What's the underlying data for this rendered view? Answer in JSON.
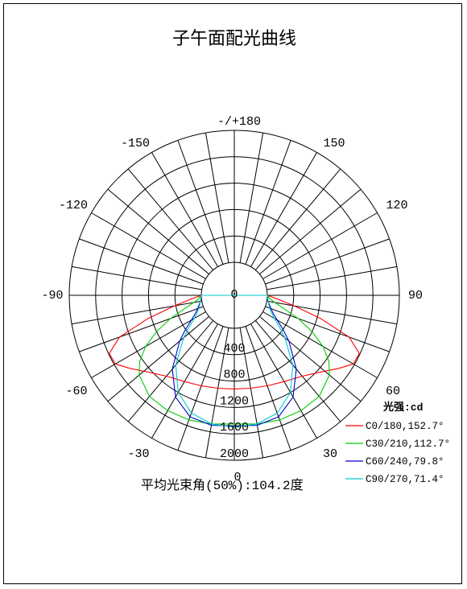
{
  "chart_data": {
    "type": "polar",
    "title": "子午面配光曲线",
    "angle_labels": [
      "-/+180",
      "150",
      "120",
      "90",
      "60",
      "30",
      "0",
      "-30",
      "-60",
      "-90",
      "-120",
      "-150"
    ],
    "radial_ticks": [
      "0",
      "400",
      "800",
      "1200",
      "1600",
      "2000"
    ],
    "radial_max": 2000,
    "legend_title": "光强:cd",
    "series": [
      {
        "name": "C0/180,152.7°",
        "color": "#ff0000",
        "angles": [
          0,
          10,
          20,
          30,
          40,
          50,
          55,
          60,
          65,
          70,
          75,
          80,
          85,
          90
        ],
        "values": [
          920,
          930,
          960,
          1010,
          1100,
          1290,
          1430,
          1580,
          1590,
          1350,
          850,
          420,
          160,
          0
        ]
      },
      {
        "name": "C30/210,112.7°",
        "color": "#00cc00",
        "angles": [
          0,
          10,
          20,
          30,
          40,
          50,
          55,
          60,
          65,
          70,
          75,
          80,
          85,
          90
        ],
        "values": [
          1450,
          1480,
          1510,
          1520,
          1500,
          1380,
          1250,
          1050,
          800,
          530,
          280,
          120,
          40,
          0
        ]
      },
      {
        "name": "C60/240,79.8°",
        "color": "#0000cc",
        "angles": [
          0,
          10,
          20,
          30,
          40,
          50,
          55,
          60,
          65,
          70,
          75,
          80,
          85,
          90
        ],
        "values": [
          1480,
          1500,
          1460,
          1280,
          960,
          580,
          400,
          250,
          150,
          90,
          50,
          20,
          10,
          0
        ]
      },
      {
        "name": "C90/270,71.4°",
        "color": "#00cccc",
        "angles": [
          0,
          10,
          20,
          30,
          40,
          50,
          55,
          60,
          65,
          70,
          75,
          80,
          85,
          90
        ],
        "values": [
          1500,
          1480,
          1400,
          1200,
          880,
          500,
          330,
          200,
          120,
          70,
          40,
          20,
          10,
          0
        ]
      }
    ],
    "footer": "平均光束角(50%):104.2度"
  }
}
